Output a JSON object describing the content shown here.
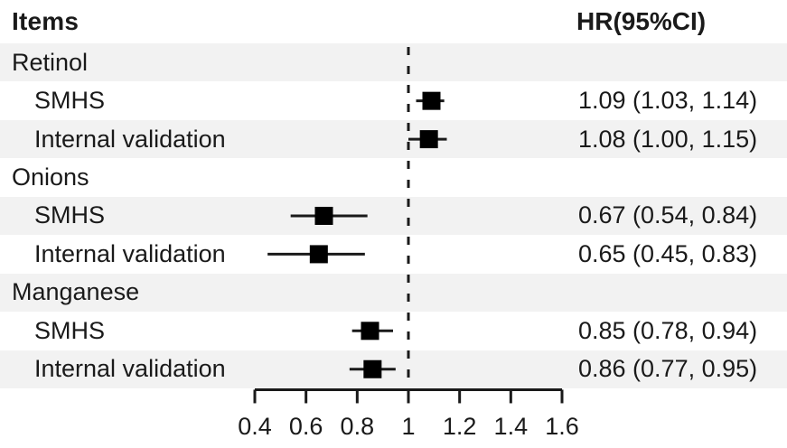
{
  "header": {
    "items_label": "Items",
    "hr_label": "HR(95%CI)"
  },
  "colors": {
    "background": "#ffffff",
    "stripe": "#f2f2f2",
    "ink": "#1a1a1a",
    "marker": "#000000"
  },
  "chart_data": {
    "type": "forest",
    "title": "",
    "xlabel": "",
    "ylabel": "",
    "columns": {
      "items": "Items",
      "hr": "HR(95%CI)"
    },
    "rows": [
      {
        "label": "Retinol",
        "group": true,
        "hr_text": ""
      },
      {
        "label": "SMHS",
        "group": false,
        "estimate": 1.09,
        "ci_low": 1.03,
        "ci_high": 1.14,
        "hr_text": "1.09 (1.03, 1.14)"
      },
      {
        "label": "Internal validation",
        "group": false,
        "estimate": 1.08,
        "ci_low": 1.0,
        "ci_high": 1.15,
        "hr_text": "1.08 (1.00, 1.15)"
      },
      {
        "label": "Onions",
        "group": true,
        "hr_text": ""
      },
      {
        "label": "SMHS",
        "group": false,
        "estimate": 0.67,
        "ci_low": 0.54,
        "ci_high": 0.84,
        "hr_text": "0.67 (0.54, 0.84)"
      },
      {
        "label": "Internal validation",
        "group": false,
        "estimate": 0.65,
        "ci_low": 0.45,
        "ci_high": 0.83,
        "hr_text": "0.65 (0.45, 0.83)"
      },
      {
        "label": "Manganese",
        "group": true,
        "hr_text": ""
      },
      {
        "label": "SMHS",
        "group": false,
        "estimate": 0.85,
        "ci_low": 0.78,
        "ci_high": 0.94,
        "hr_text": "0.85 (0.78, 0.94)"
      },
      {
        "label": "Internal validation",
        "group": false,
        "estimate": 0.86,
        "ci_low": 0.77,
        "ci_high": 0.95,
        "hr_text": "0.86 (0.77, 0.95)"
      }
    ],
    "axis": {
      "min": 0.4,
      "max": 1.6,
      "ticks": [
        0.4,
        0.6,
        0.8,
        1,
        1.2,
        1.4,
        1.6
      ],
      "tick_labels": [
        "0.4",
        "0.6",
        "0.8",
        "1",
        "1.2",
        "1.4",
        "1.6"
      ],
      "reference_line": 1
    },
    "legend": null,
    "grid": false
  }
}
